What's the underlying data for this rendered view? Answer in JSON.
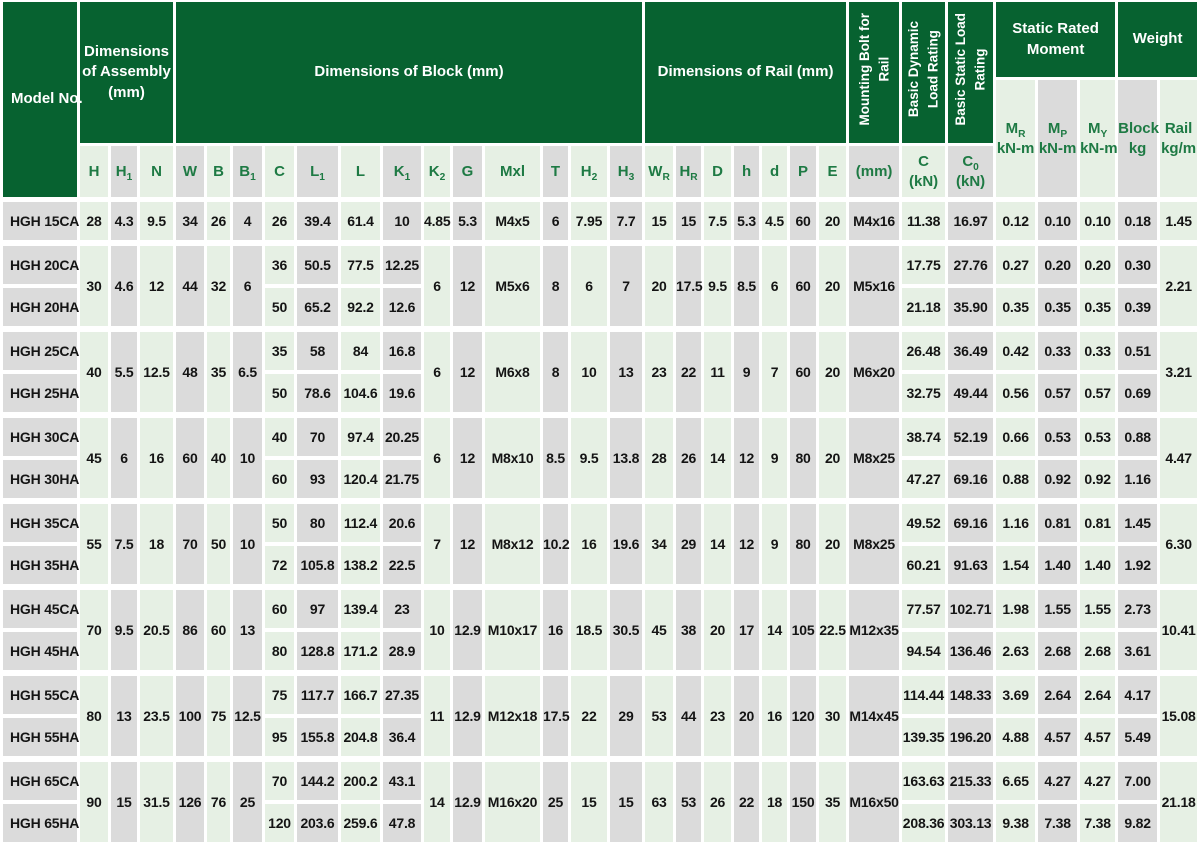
{
  "colors": {
    "dark_green": "#076230",
    "light_green": "#E6F0E4",
    "light_gray": "#DBDBDB",
    "subheader_text": "#1E7A44",
    "data_text": "#141414",
    "separator": "#FFFFFF"
  },
  "table": {
    "bands": {
      "model": "Model No.",
      "assembly": [
        "Dimensions",
        "of Assembly",
        "(mm)"
      ],
      "block": [
        "Dimensions of Block (mm)"
      ],
      "rail": [
        "Dimensions of Rail (mm)"
      ],
      "mounting_bolt": [
        "Mounting Bolt for",
        "Rail"
      ],
      "dynamic_rating": [
        "Basic Dynamic",
        "Load Rating"
      ],
      "static_rating": [
        "Basic Static Load",
        "Rating"
      ],
      "moment": [
        "Static Rated",
        "Moment"
      ],
      "weight": [
        "Weight"
      ]
    },
    "subheaders": [
      {
        "b": "H"
      },
      {
        "b": "H",
        "s": "1"
      },
      {
        "b": "N"
      },
      {
        "b": "W"
      },
      {
        "b": "B"
      },
      {
        "b": "B",
        "s": "1"
      },
      {
        "b": "C"
      },
      {
        "b": "L",
        "s": "1"
      },
      {
        "b": "L"
      },
      {
        "b": "K",
        "s": "1"
      },
      {
        "b": "K",
        "s": "2"
      },
      {
        "b": "G"
      },
      {
        "b": "Mxl"
      },
      {
        "b": "T"
      },
      {
        "b": "H",
        "s": "2"
      },
      {
        "b": "H",
        "s": "3"
      },
      {
        "b": "W",
        "s": "R"
      },
      {
        "b": "H",
        "s": "R"
      },
      {
        "b": "D"
      },
      {
        "b": "h"
      },
      {
        "b": "d"
      },
      {
        "b": "P"
      },
      {
        "b": "E"
      },
      {
        "b": "(mm)"
      },
      {
        "b": "C",
        "l2": "(kN)"
      },
      {
        "b": "C",
        "s": "0",
        "l2": "(kN)"
      },
      {
        "b": "M",
        "s": "R",
        "l2": "kN-m"
      },
      {
        "b": "M",
        "s": "P",
        "l2": "kN-m"
      },
      {
        "b": "M",
        "s": "Y",
        "l2": "kN-m"
      },
      {
        "b": "Block",
        "l2": "kg"
      },
      {
        "b": "Rail",
        "l2": "kg/m"
      }
    ],
    "groups": [
      {
        "models": [
          "HGH 15CA"
        ],
        "assembly": [
          "28",
          "4.3",
          "9.5",
          "34",
          "26",
          "4"
        ],
        "block": [
          [
            "26",
            "39.4",
            "61.4",
            "10"
          ]
        ],
        "shared": [
          "4.85",
          "5.3",
          "M4x5",
          "6",
          "7.95",
          "7.7",
          "15",
          "15",
          "7.5",
          "5.3",
          "4.5",
          "60",
          "20",
          "M4x16"
        ],
        "ratings": [
          [
            "11.38",
            "16.97",
            "0.12",
            "0.10",
            "0.10",
            "0.18"
          ]
        ],
        "rail": "1.45"
      },
      {
        "models": [
          "HGH 20CA",
          "HGH 20HA"
        ],
        "assembly": [
          "30",
          "4.6",
          "12",
          "44",
          "32",
          "6"
        ],
        "block": [
          [
            "36",
            "50.5",
            "77.5",
            "12.25"
          ],
          [
            "50",
            "65.2",
            "92.2",
            "12.6"
          ]
        ],
        "shared": [
          "6",
          "12",
          "M5x6",
          "8",
          "6",
          "7",
          "20",
          "17.5",
          "9.5",
          "8.5",
          "6",
          "60",
          "20",
          "M5x16"
        ],
        "ratings": [
          [
            "17.75",
            "27.76",
            "0.27",
            "0.20",
            "0.20",
            "0.30"
          ],
          [
            "21.18",
            "35.90",
            "0.35",
            "0.35",
            "0.35",
            "0.39"
          ]
        ],
        "rail": "2.21"
      },
      {
        "models": [
          "HGH 25CA",
          "HGH 25HA"
        ],
        "assembly": [
          "40",
          "5.5",
          "12.5",
          "48",
          "35",
          "6.5"
        ],
        "block": [
          [
            "35",
            "58",
            "84",
            "16.8"
          ],
          [
            "50",
            "78.6",
            "104.6",
            "19.6"
          ]
        ],
        "shared": [
          "6",
          "12",
          "M6x8",
          "8",
          "10",
          "13",
          "23",
          "22",
          "11",
          "9",
          "7",
          "60",
          "20",
          "M6x20"
        ],
        "ratings": [
          [
            "26.48",
            "36.49",
            "0.42",
            "0.33",
            "0.33",
            "0.51"
          ],
          [
            "32.75",
            "49.44",
            "0.56",
            "0.57",
            "0.57",
            "0.69"
          ]
        ],
        "rail": "3.21"
      },
      {
        "models": [
          "HGH 30CA",
          "HGH 30HA"
        ],
        "assembly": [
          "45",
          "6",
          "16",
          "60",
          "40",
          "10"
        ],
        "block": [
          [
            "40",
            "70",
            "97.4",
            "20.25"
          ],
          [
            "60",
            "93",
            "120.4",
            "21.75"
          ]
        ],
        "shared": [
          "6",
          "12",
          "M8x10",
          "8.5",
          "9.5",
          "13.8",
          "28",
          "26",
          "14",
          "12",
          "9",
          "80",
          "20",
          "M8x25"
        ],
        "ratings": [
          [
            "38.74",
            "52.19",
            "0.66",
            "0.53",
            "0.53",
            "0.88"
          ],
          [
            "47.27",
            "69.16",
            "0.88",
            "0.92",
            "0.92",
            "1.16"
          ]
        ],
        "rail": "4.47"
      },
      {
        "models": [
          "HGH 35CA",
          "HGH 35HA"
        ],
        "assembly": [
          "55",
          "7.5",
          "18",
          "70",
          "50",
          "10"
        ],
        "block": [
          [
            "50",
            "80",
            "112.4",
            "20.6"
          ],
          [
            "72",
            "105.8",
            "138.2",
            "22.5"
          ]
        ],
        "shared": [
          "7",
          "12",
          "M8x12",
          "10.2",
          "16",
          "19.6",
          "34",
          "29",
          "14",
          "12",
          "9",
          "80",
          "20",
          "M8x25"
        ],
        "ratings": [
          [
            "49.52",
            "69.16",
            "1.16",
            "0.81",
            "0.81",
            "1.45"
          ],
          [
            "60.21",
            "91.63",
            "1.54",
            "1.40",
            "1.40",
            "1.92"
          ]
        ],
        "rail": "6.30"
      },
      {
        "models": [
          "HGH 45CA",
          "HGH 45HA"
        ],
        "assembly": [
          "70",
          "9.5",
          "20.5",
          "86",
          "60",
          "13"
        ],
        "block": [
          [
            "60",
            "97",
            "139.4",
            "23"
          ],
          [
            "80",
            "128.8",
            "171.2",
            "28.9"
          ]
        ],
        "shared": [
          "10",
          "12.9",
          "M10x17",
          "16",
          "18.5",
          "30.5",
          "45",
          "38",
          "20",
          "17",
          "14",
          "105",
          "22.5",
          "M12x35"
        ],
        "ratings": [
          [
            "77.57",
            "102.71",
            "1.98",
            "1.55",
            "1.55",
            "2.73"
          ],
          [
            "94.54",
            "136.46",
            "2.63",
            "2.68",
            "2.68",
            "3.61"
          ]
        ],
        "rail": "10.41"
      },
      {
        "models": [
          "HGH 55CA",
          "HGH 55HA"
        ],
        "assembly": [
          "80",
          "13",
          "23.5",
          "100",
          "75",
          "12.5"
        ],
        "block": [
          [
            "75",
            "117.7",
            "166.7",
            "27.35"
          ],
          [
            "95",
            "155.8",
            "204.8",
            "36.4"
          ]
        ],
        "shared": [
          "11",
          "12.9",
          "M12x18",
          "17.5",
          "22",
          "29",
          "53",
          "44",
          "23",
          "20",
          "16",
          "120",
          "30",
          "M14x45"
        ],
        "ratings": [
          [
            "114.44",
            "148.33",
            "3.69",
            "2.64",
            "2.64",
            "4.17"
          ],
          [
            "139.35",
            "196.20",
            "4.88",
            "4.57",
            "4.57",
            "5.49"
          ]
        ],
        "rail": "15.08"
      },
      {
        "models": [
          "HGH 65CA",
          "HGH 65HA"
        ],
        "assembly": [
          "90",
          "15",
          "31.5",
          "126",
          "76",
          "25"
        ],
        "block": [
          [
            "70",
            "144.2",
            "200.2",
            "43.1"
          ],
          [
            "120",
            "203.6",
            "259.6",
            "47.8"
          ]
        ],
        "shared": [
          "14",
          "12.9",
          "M16x20",
          "25",
          "15",
          "15",
          "63",
          "53",
          "26",
          "22",
          "18",
          "150",
          "35",
          "M16x50"
        ],
        "ratings": [
          [
            "163.63",
            "215.33",
            "6.65",
            "4.27",
            "4.27",
            "7.00"
          ],
          [
            "208.36",
            "303.13",
            "9.38",
            "7.38",
            "7.38",
            "9.82"
          ]
        ],
        "rail": "21.18"
      }
    ]
  }
}
